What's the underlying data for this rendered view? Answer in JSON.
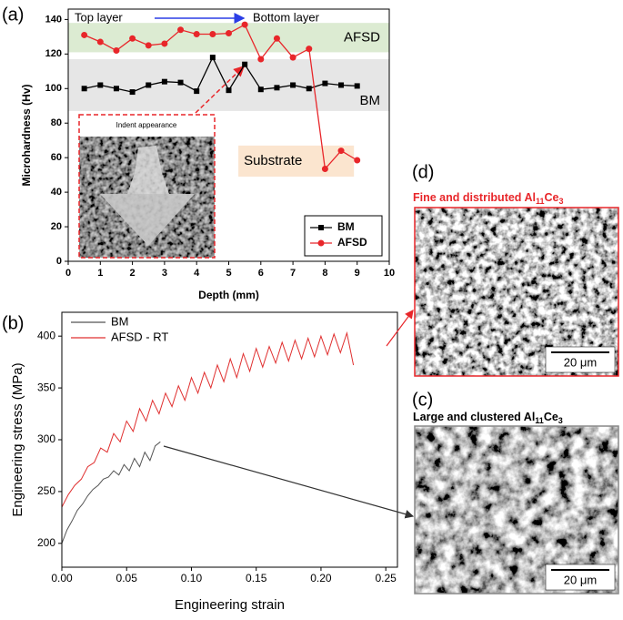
{
  "chart_data": [
    {
      "type": "line",
      "label": "(a)",
      "xlabel": "Depth (mm)",
      "ylabel": "Microhardness (Hv)",
      "x": [
        0.5,
        1,
        1.5,
        2,
        2.5,
        3,
        3.5,
        4,
        4.5,
        5,
        5.5,
        6,
        6.5,
        7,
        7.5,
        8,
        8.5,
        9
      ],
      "xlim": [
        0,
        10
      ],
      "xticks": [
        0,
        1,
        2,
        3,
        4,
        5,
        6,
        7,
        8,
        9,
        10
      ],
      "ylim": [
        0,
        146
      ],
      "yticks": [
        0,
        20,
        40,
        60,
        80,
        100,
        120,
        140
      ],
      "series": [
        {
          "name": "BM",
          "color": "#000000",
          "marker": "square",
          "values": [
            100,
            102,
            100,
            98,
            102,
            104,
            103.5,
            98.5,
            118,
            99,
            114,
            99.5,
            100.5,
            102,
            100,
            103,
            102,
            101.5
          ]
        },
        {
          "name": "AFSD",
          "color": "#e8262a",
          "marker": "circle",
          "values": [
            131,
            127,
            122,
            129,
            125,
            126,
            134,
            131.5,
            131.5,
            132,
            137,
            117,
            129,
            118,
            123,
            53.5,
            64,
            58.5
          ]
        }
      ],
      "bands": [
        {
          "label": "AFSD",
          "y": [
            121,
            138
          ],
          "color": "#dcebd2"
        },
        {
          "label": "BM",
          "y": [
            87,
            117
          ],
          "color": "#e6e6e6"
        },
        {
          "label": "Substrate",
          "x": [
            5.3,
            8.9
          ],
          "y": [
            49,
            67
          ],
          "color": "#fbe5cf"
        }
      ],
      "annotations": [
        "Top layer",
        "Bottom layer"
      ],
      "inset_caption": "Indent appearance",
      "legend": "lower right"
    },
    {
      "type": "line",
      "label": "(b)",
      "xlabel": "Engineering strain",
      "ylabel": "Engineering stress (MPa)",
      "xlim": [
        0,
        0.259
      ],
      "xticks": [
        {
          "value": 0,
          "label": "0.00"
        },
        {
          "value": 0.05,
          "label": "0.05"
        },
        {
          "value": 0.1,
          "label": "0.10"
        },
        {
          "value": 0.15,
          "label": "0.15"
        },
        {
          "value": 0.2,
          "label": "0.20"
        },
        {
          "value": 0.25,
          "label": "0.25"
        }
      ],
      "ylim": [
        177,
        423
      ],
      "yticks": [
        200,
        250,
        300,
        350,
        400
      ],
      "series": [
        {
          "name": "BM",
          "color": "#555555",
          "x": [
            0,
            0.004,
            0.008,
            0.012,
            0.016,
            0.02,
            0.024,
            0.028,
            0.032,
            0.036,
            0.04,
            0.044,
            0.048,
            0.052,
            0.056,
            0.06,
            0.064,
            0.068,
            0.072,
            0.076
          ],
          "values": [
            200,
            213,
            222,
            232,
            238,
            246,
            252,
            256,
            262,
            264,
            270,
            266,
            276,
            270,
            282,
            274,
            288,
            280,
            294,
            298
          ]
        },
        {
          "name": "AFSD  - RT",
          "color": "#e03030",
          "x": [
            0,
            0.005,
            0.01,
            0.015,
            0.02,
            0.025,
            0.03,
            0.035,
            0.04,
            0.045,
            0.05,
            0.055,
            0.06,
            0.065,
            0.07,
            0.075,
            0.08,
            0.085,
            0.09,
            0.095,
            0.1,
            0.105,
            0.11,
            0.115,
            0.12,
            0.125,
            0.13,
            0.135,
            0.14,
            0.145,
            0.15,
            0.155,
            0.16,
            0.165,
            0.17,
            0.175,
            0.18,
            0.185,
            0.19,
            0.195,
            0.2,
            0.205,
            0.21,
            0.215,
            0.22,
            0.225
          ],
          "values": [
            235,
            247,
            256,
            262,
            274,
            278,
            292,
            288,
            306,
            298,
            318,
            308,
            330,
            318,
            338,
            325,
            345,
            332,
            352,
            338,
            360,
            345,
            365,
            350,
            372,
            356,
            378,
            360,
            383,
            366,
            388,
            370,
            390,
            374,
            394,
            376,
            396,
            378,
            398,
            380,
            400,
            382,
            402,
            384,
            403,
            372
          ]
        }
      ],
      "legend": "upper left"
    }
  ],
  "micrographs": [
    {
      "label": "(d)",
      "caption": [
        "Fine and distributed  Al",
        "11",
        "Ce",
        "3"
      ],
      "scale_bar": "20 μm"
    },
    {
      "label": "(c)",
      "caption": [
        "Large and clustered Al",
        "11",
        "Ce",
        "3"
      ],
      "scale_bar": "20 μm"
    }
  ]
}
